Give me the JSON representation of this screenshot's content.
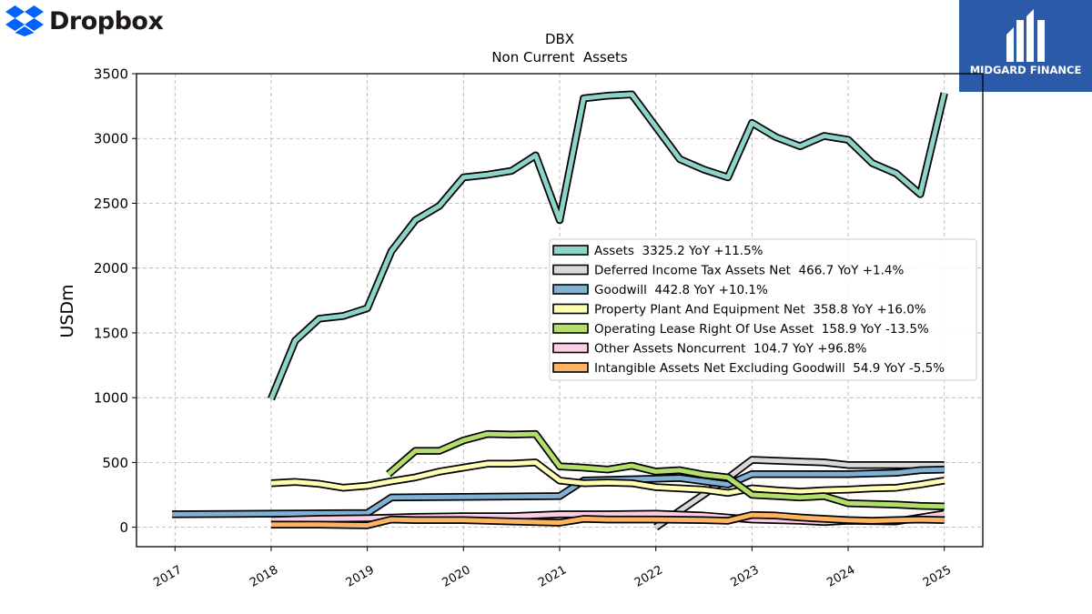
{
  "logos": {
    "left": {
      "name": "Dropbox",
      "color": "#0061fe"
    },
    "right": {
      "name": "MIDGARD FINANCE",
      "background": "#2a5aa8"
    }
  },
  "chart_data": {
    "type": "line",
    "title": "DBX",
    "subtitle": "Non Current  Assets",
    "xlabel": "",
    "ylabel": "USDm",
    "xlim": [
      2016.6,
      2025.4
    ],
    "ylim": [
      -150,
      3500
    ],
    "x_ticks": [
      "2017",
      "2018",
      "2019",
      "2020",
      "2021",
      "2022",
      "2023",
      "2024",
      "2025"
    ],
    "y_ticks": [
      "0",
      "500",
      "1000",
      "1500",
      "2000",
      "2500",
      "3000",
      "3500"
    ],
    "grid": true,
    "legend_position": "center-right",
    "series": [
      {
        "name": "Assets",
        "legend": "Assets  3325.2 YoY +11.5%",
        "color": "#8dd3c7",
        "points": [
          [
            2018.0,
            990
          ],
          [
            2018.25,
            1440
          ],
          [
            2018.5,
            1610
          ],
          [
            2018.75,
            1630
          ],
          [
            2019.0,
            1690
          ],
          [
            2019.25,
            2130
          ],
          [
            2019.5,
            2370
          ],
          [
            2019.75,
            2480
          ],
          [
            2020.0,
            2700
          ],
          [
            2020.25,
            2720
          ],
          [
            2020.5,
            2750
          ],
          [
            2020.75,
            2870
          ],
          [
            2021.0,
            2370
          ],
          [
            2021.25,
            3310
          ],
          [
            2021.5,
            3330
          ],
          [
            2021.75,
            3340
          ],
          [
            2022.0,
            3090
          ],
          [
            2022.25,
            2840
          ],
          [
            2022.5,
            2760
          ],
          [
            2022.75,
            2700
          ],
          [
            2023.0,
            3120
          ],
          [
            2023.25,
            3010
          ],
          [
            2023.5,
            2940
          ],
          [
            2023.75,
            3020
          ],
          [
            2024.0,
            2990
          ],
          [
            2024.25,
            2810
          ],
          [
            2024.5,
            2730
          ],
          [
            2024.75,
            2570
          ],
          [
            2025.0,
            3350
          ]
        ]
      },
      {
        "name": "Deferred Income Tax Assets Net",
        "legend": "Deferred Income Tax Assets Net  466.7 YoY +1.4%",
        "color": "#d9d9d9",
        "points": [
          [
            2022.0,
            0
          ],
          [
            2022.75,
            380
          ],
          [
            2023.0,
            520
          ],
          [
            2023.75,
            500
          ],
          [
            2024.0,
            480
          ],
          [
            2024.5,
            480
          ],
          [
            2025.0,
            480
          ]
        ]
      },
      {
        "name": "Goodwill",
        "legend": "Goodwill  442.8 YoY +10.1%",
        "color": "#80b1d3",
        "points": [
          [
            2016.97,
            100
          ],
          [
            2019.0,
            110
          ],
          [
            2019.25,
            230
          ],
          [
            2020.0,
            235
          ],
          [
            2021.0,
            240
          ],
          [
            2021.25,
            360
          ],
          [
            2022.0,
            375
          ],
          [
            2022.25,
            380
          ],
          [
            2022.75,
            330
          ],
          [
            2023.0,
            410
          ],
          [
            2024.0,
            410
          ],
          [
            2024.5,
            420
          ],
          [
            2024.75,
            440
          ],
          [
            2025.0,
            445
          ]
        ]
      },
      {
        "name": "Property Plant And Equipment Net",
        "legend": "Property Plant And Equipment Net  358.8 YoY +16.0%",
        "color": "#ffffb3",
        "points": [
          [
            2018.0,
            340
          ],
          [
            2018.25,
            350
          ],
          [
            2018.5,
            335
          ],
          [
            2018.75,
            305
          ],
          [
            2019.0,
            320
          ],
          [
            2019.25,
            355
          ],
          [
            2019.5,
            385
          ],
          [
            2019.75,
            430
          ],
          [
            2020.0,
            460
          ],
          [
            2020.25,
            490
          ],
          [
            2020.5,
            490
          ],
          [
            2020.75,
            500
          ],
          [
            2021.0,
            360
          ],
          [
            2021.25,
            340
          ],
          [
            2021.5,
            345
          ],
          [
            2021.75,
            340
          ],
          [
            2022.0,
            310
          ],
          [
            2022.25,
            300
          ],
          [
            2022.5,
            290
          ],
          [
            2022.75,
            265
          ],
          [
            2023.0,
            300
          ],
          [
            2023.25,
            285
          ],
          [
            2023.5,
            275
          ],
          [
            2023.75,
            285
          ],
          [
            2024.0,
            290
          ],
          [
            2024.25,
            300
          ],
          [
            2024.5,
            305
          ],
          [
            2024.75,
            330
          ],
          [
            2025.0,
            360
          ]
        ]
      },
      {
        "name": "Operating Lease Right Of Use Asset",
        "legend": "Operating Lease Right Of Use Asset  158.9 YoY -13.5%",
        "color": "#b3de69",
        "points": [
          [
            2019.22,
            410
          ],
          [
            2019.5,
            590
          ],
          [
            2019.75,
            590
          ],
          [
            2020.0,
            670
          ],
          [
            2020.25,
            720
          ],
          [
            2020.5,
            715
          ],
          [
            2020.75,
            720
          ],
          [
            2021.0,
            470
          ],
          [
            2021.25,
            460
          ],
          [
            2021.5,
            445
          ],
          [
            2021.75,
            475
          ],
          [
            2022.0,
            430
          ],
          [
            2022.25,
            440
          ],
          [
            2022.5,
            405
          ],
          [
            2022.75,
            385
          ],
          [
            2023.0,
            250
          ],
          [
            2023.25,
            240
          ],
          [
            2023.5,
            230
          ],
          [
            2023.75,
            240
          ],
          [
            2024.0,
            185
          ],
          [
            2024.25,
            180
          ],
          [
            2024.5,
            175
          ],
          [
            2024.75,
            165
          ],
          [
            2025.0,
            160
          ]
        ]
      },
      {
        "name": "Other Assets Noncurrent",
        "legend": "Other Assets Noncurrent  104.7 YoY +96.8%",
        "color": "#fccde5",
        "points": [
          [
            2018.0,
            55
          ],
          [
            2018.5,
            65
          ],
          [
            2019.0,
            70
          ],
          [
            2019.5,
            80
          ],
          [
            2020.0,
            85
          ],
          [
            2020.5,
            85
          ],
          [
            2021.0,
            100
          ],
          [
            2021.5,
            100
          ],
          [
            2022.0,
            105
          ],
          [
            2022.5,
            90
          ],
          [
            2023.0,
            60
          ],
          [
            2023.5,
            50
          ],
          [
            2023.75,
            40
          ],
          [
            2024.0,
            50
          ],
          [
            2024.5,
            45
          ],
          [
            2025.0,
            105
          ]
        ]
      },
      {
        "name": "Intangible Assets Net Excluding Goodwill",
        "legend": "Intangible Assets Net Excluding Goodwill  54.9 YoY -5.5%",
        "color": "#fdb462",
        "points": [
          [
            2018.0,
            20
          ],
          [
            2018.5,
            20
          ],
          [
            2019.0,
            15
          ],
          [
            2019.25,
            60
          ],
          [
            2019.5,
            55
          ],
          [
            2020.0,
            55
          ],
          [
            2020.5,
            45
          ],
          [
            2021.0,
            35
          ],
          [
            2021.25,
            65
          ],
          [
            2021.5,
            60
          ],
          [
            2022.0,
            60
          ],
          [
            2022.5,
            55
          ],
          [
            2022.75,
            50
          ],
          [
            2023.0,
            95
          ],
          [
            2023.25,
            90
          ],
          [
            2023.5,
            75
          ],
          [
            2023.75,
            65
          ],
          [
            2024.0,
            55
          ],
          [
            2024.25,
            50
          ],
          [
            2024.5,
            55
          ],
          [
            2024.75,
            60
          ],
          [
            2025.0,
            55
          ]
        ]
      }
    ]
  }
}
